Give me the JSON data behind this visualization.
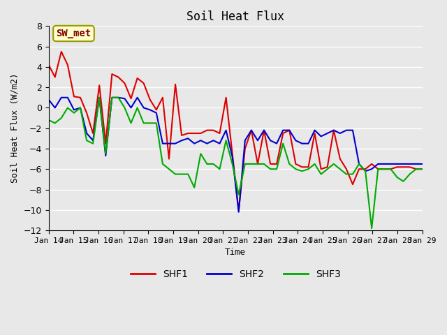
{
  "title": "Soil Heat Flux",
  "ylabel": "Soil Heat Flux (W/m2)",
  "xlabel": "Time",
  "ylim": [
    -12,
    8
  ],
  "yticks": [
    -12,
    -10,
    -8,
    -6,
    -4,
    -2,
    0,
    2,
    4,
    6,
    8
  ],
  "annotation_text": "SW_met",
  "annotation_bg": "#ffffcc",
  "annotation_border": "#999900",
  "annotation_text_color": "#800000",
  "bg_color": "#e8e8e8",
  "plot_bg": "#e8e8e8",
  "grid_color": "#ffffff",
  "shf1_color": "#dd0000",
  "shf2_color": "#0000cc",
  "shf3_color": "#00aa00",
  "line_width": 1.5,
  "x_labels": [
    "Jan 14",
    "Jan 15",
    "Jan 16",
    "Jan 17",
    "Jan 18",
    "Jan 19",
    "Jan 20",
    "Jan 21",
    "Jan 22",
    "Jan 23",
    "Jan 24",
    "Jan 25",
    "Jan 26",
    "Jan 27",
    "Jan 28",
    "Jan 29"
  ],
  "shf1": [
    4.2,
    3.0,
    5.5,
    4.2,
    1.1,
    1.0,
    -0.5,
    -2.5,
    2.2,
    -3.5,
    3.3,
    3.0,
    2.4,
    0.9,
    2.9,
    2.4,
    0.8,
    -0.2,
    1.0,
    -5.0,
    2.3,
    -2.7,
    -2.5,
    -2.5,
    -2.5,
    -2.2,
    -2.2,
    -2.5,
    1.0,
    -4.5,
    -10.1,
    -4.0,
    -2.2,
    -5.5,
    -2.2,
    -5.5,
    -5.5,
    -2.5,
    -2.2,
    -5.5,
    -5.8,
    -5.8,
    -2.5,
    -6.0,
    -5.8,
    -2.2,
    -5.0,
    -6.0,
    -7.5,
    -6.0,
    -6.0,
    -5.5,
    -6.0,
    -6.0,
    -6.0,
    -5.8,
    -5.8,
    -5.8,
    -6.0,
    -6.0
  ],
  "shf2": [
    0.8,
    0.0,
    1.0,
    1.0,
    -0.2,
    0.0,
    -2.5,
    -3.2,
    1.0,
    -4.7,
    1.0,
    1.0,
    0.9,
    0.0,
    1.0,
    0.0,
    -0.2,
    -0.5,
    -3.5,
    -3.5,
    -3.5,
    -3.2,
    -3.0,
    -3.5,
    -3.2,
    -3.5,
    -3.2,
    -3.5,
    -2.2,
    -4.8,
    -10.2,
    -3.2,
    -2.2,
    -3.2,
    -2.2,
    -3.2,
    -3.5,
    -2.2,
    -2.2,
    -3.2,
    -3.5,
    -3.5,
    -2.2,
    -2.8,
    -2.5,
    -2.2,
    -2.5,
    -2.2,
    -2.2,
    -5.5,
    -6.2,
    -6.0,
    -5.5,
    -5.5,
    -5.5,
    -5.5,
    -5.5,
    -5.5,
    -5.5,
    -5.5
  ],
  "shf3": [
    -1.2,
    -1.5,
    -1.0,
    0.0,
    -0.5,
    0.0,
    -3.2,
    -3.5,
    1.0,
    -4.5,
    1.0,
    1.0,
    0.0,
    -1.5,
    0.0,
    -1.5,
    -1.5,
    -1.5,
    -5.5,
    -6.0,
    -6.5,
    -6.5,
    -6.5,
    -7.8,
    -4.5,
    -5.5,
    -5.5,
    -6.0,
    -3.2,
    -5.5,
    -8.5,
    -5.5,
    -5.5,
    -5.5,
    -5.5,
    -6.0,
    -6.0,
    -3.5,
    -5.5,
    -6.0,
    -6.2,
    -6.0,
    -5.5,
    -6.5,
    -6.0,
    -5.5,
    -6.0,
    -6.5,
    -6.5,
    -5.5,
    -6.2,
    -11.8,
    -6.0,
    -6.0,
    -6.0,
    -6.8,
    -7.2,
    -6.5,
    -6.0,
    -6.0
  ]
}
